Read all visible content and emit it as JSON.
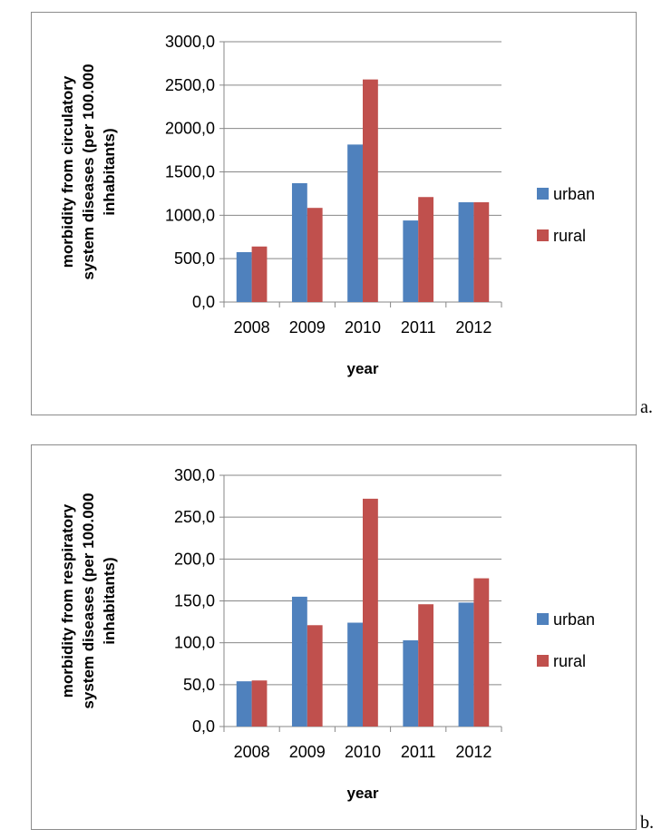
{
  "chart_data": [
    {
      "type": "bar",
      "panel_label": "a.",
      "categories": [
        "2008",
        "2009",
        "2010",
        "2011",
        "2012"
      ],
      "series": [
        {
          "name": "urban",
          "values": [
            575,
            1370,
            1815,
            940,
            1150
          ],
          "color": "#4f81bd"
        },
        {
          "name": "rural",
          "values": [
            640,
            1085,
            2565,
            1210,
            1150
          ],
          "color": "#c0504d"
        }
      ],
      "title": "",
      "xlabel": "year",
      "ylabel_lines": [
        "morbidity from circulatory",
        "system diseases (per 100.000",
        "inhabitants)"
      ],
      "ylim": [
        0,
        3000
      ],
      "yticks": [
        "0,0",
        "500,0",
        "1000,0",
        "1500,0",
        "2000,0",
        "2500,0",
        "3000,0"
      ],
      "grid": true,
      "legend": "right"
    },
    {
      "type": "bar",
      "panel_label": "b.",
      "categories": [
        "2008",
        "2009",
        "2010",
        "2011",
        "2012"
      ],
      "series": [
        {
          "name": "urban",
          "values": [
            54,
            155,
            124,
            103,
            148
          ],
          "color": "#4f81bd"
        },
        {
          "name": "rural",
          "values": [
            55,
            121,
            272,
            146,
            177
          ],
          "color": "#c0504d"
        }
      ],
      "title": "",
      "xlabel": "year",
      "ylabel_lines": [
        "morbidity from respiratory",
        "system diseases (per 100.000",
        "inhabitants)"
      ],
      "ylim": [
        0,
        300
      ],
      "yticks": [
        "0,0",
        "50,0",
        "100,0",
        "150,0",
        "200,0",
        "250,0",
        "300,0"
      ],
      "grid": true,
      "legend": "right"
    }
  ]
}
